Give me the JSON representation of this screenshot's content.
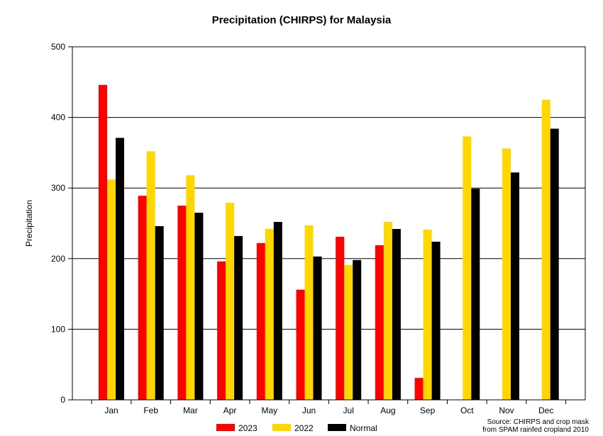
{
  "chart_data": {
    "type": "bar",
    "title": "Precipitation (CHIRPS) for Malaysia",
    "ylabel": "Precipitation",
    "xlabel": "",
    "ylim": [
      0,
      500
    ],
    "yticks": [
      0,
      100,
      200,
      300,
      400,
      500
    ],
    "grid": true,
    "legend_position": "bottom",
    "categories": [
      "Jan",
      "Feb",
      "Mar",
      "Apr",
      "May",
      "Jun",
      "Jul",
      "Aug",
      "Sep",
      "Oct",
      "Nov",
      "Dec"
    ],
    "series": [
      {
        "name": "2023",
        "color": "#ff0000",
        "values": [
          446,
          289,
          275,
          196,
          222,
          156,
          231,
          219,
          31,
          null,
          null,
          null
        ]
      },
      {
        "name": "2022",
        "color": "#ffd700",
        "values": [
          312,
          352,
          318,
          279,
          242,
          247,
          191,
          252,
          241,
          373,
          356,
          425
        ]
      },
      {
        "name": "Normal",
        "color": "#000000",
        "values": [
          371,
          246,
          265,
          232,
          252,
          203,
          198,
          242,
          224,
          299,
          322,
          384
        ]
      }
    ],
    "source_lines": [
      "Source: CHIRPS and crop mask",
      "from SPAM rainfed cropland 2010"
    ]
  }
}
